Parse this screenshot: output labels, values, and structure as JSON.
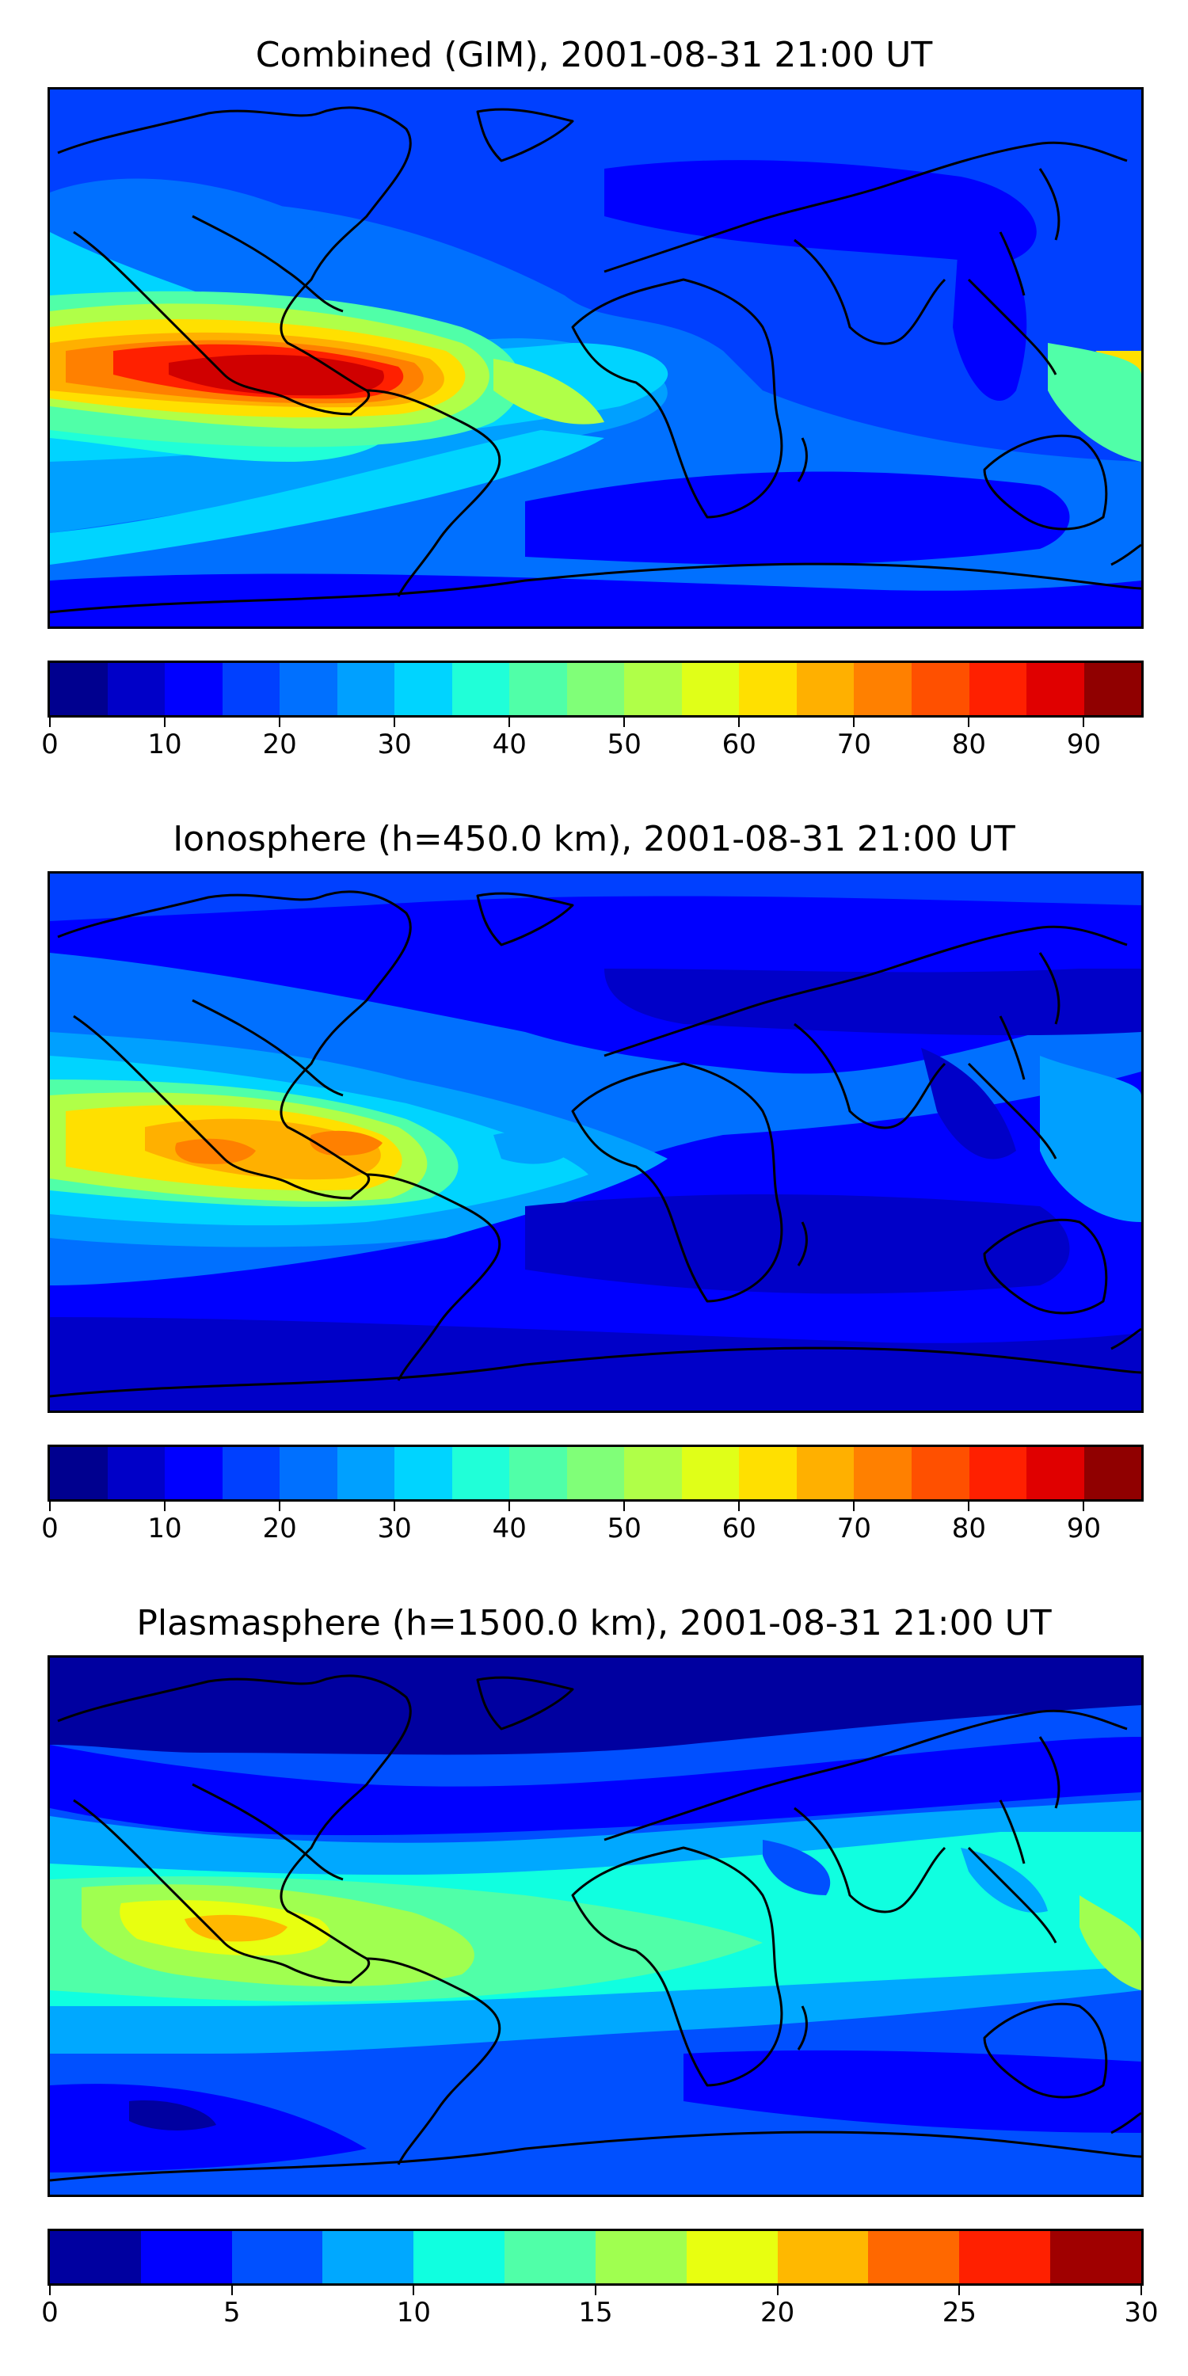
{
  "panels": [
    {
      "title": "Combined (GIM), 2001-08-31 21:00 UT",
      "colorbar": {
        "min": 0,
        "max": 95,
        "colors": [
          "#00008f",
          "#0000c8",
          "#0000ff",
          "#0040ff",
          "#0070ff",
          "#00a0ff",
          "#00d4ff",
          "#20ffd8",
          "#50ffa8",
          "#80ff78",
          "#b0ff48",
          "#e0ff18",
          "#ffe000",
          "#ffb000",
          "#ff8000",
          "#ff5000",
          "#ff2000",
          "#e00000",
          "#900000"
        ],
        "ticks": [
          "0",
          "10",
          "20",
          "30",
          "40",
          "50",
          "60",
          "70",
          "80",
          "90"
        ]
      }
    },
    {
      "title": "Ionosphere  (h=450.0 km), 2001-08-31 21:00 UT",
      "colorbar": {
        "min": 0,
        "max": 95,
        "colors": [
          "#00008f",
          "#0000c8",
          "#0000ff",
          "#0040ff",
          "#0070ff",
          "#00a0ff",
          "#00d4ff",
          "#20ffd8",
          "#50ffa8",
          "#80ff78",
          "#b0ff48",
          "#e0ff18",
          "#ffe000",
          "#ffb000",
          "#ff8000",
          "#ff5000",
          "#ff2000",
          "#e00000",
          "#900000"
        ],
        "ticks": [
          "0",
          "10",
          "20",
          "30",
          "40",
          "50",
          "60",
          "70",
          "80",
          "90"
        ]
      }
    },
    {
      "title": "Plasmasphere (h=1500.0 km), 2001-08-31 21:00 UT",
      "colorbar": {
        "min": 0,
        "max": 30,
        "colors": [
          "#0000a0",
          "#0000ff",
          "#0050ff",
          "#00a8ff",
          "#10ffe0",
          "#50ffa8",
          "#a0ff50",
          "#e8ff10",
          "#ffb800",
          "#ff6800",
          "#ff2000",
          "#a00000"
        ],
        "ticks": [
          "0",
          "5",
          "10",
          "15",
          "20",
          "25",
          "30"
        ]
      }
    }
  ]
}
